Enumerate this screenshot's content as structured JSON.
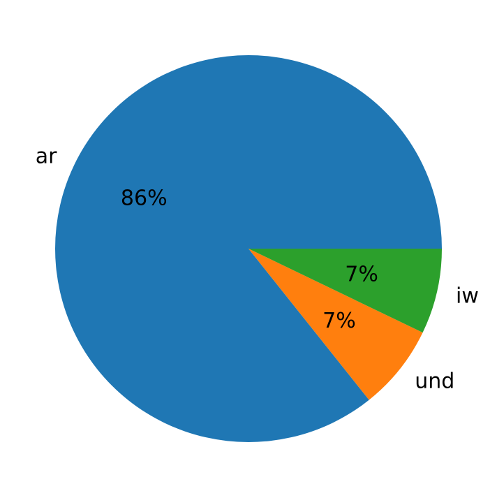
{
  "chart_data": {
    "type": "pie",
    "categories": [
      "ar",
      "und",
      "iw"
    ],
    "values": [
      12,
      1,
      1
    ],
    "percent_labels": [
      "86%",
      "7%",
      "7%"
    ],
    "colors": [
      "#1f77b4",
      "#ff7f0e",
      "#2ca02c"
    ],
    "start_angle_deg": 0,
    "direction": "counterclockwise",
    "title": "",
    "legend": "none"
  }
}
